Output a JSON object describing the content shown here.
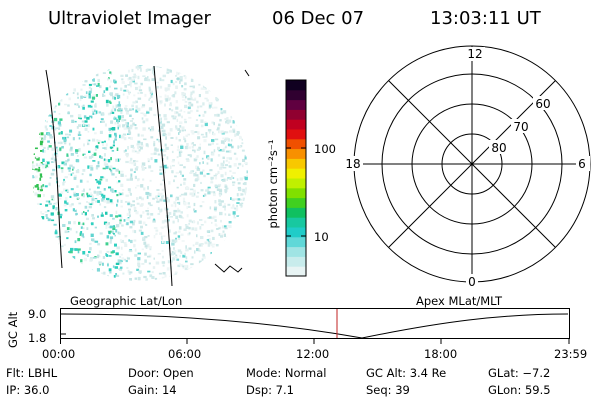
{
  "header": {
    "instrument": "Ultraviolet Imager",
    "date": "06 Dec 07",
    "time": "13:03:11 UT"
  },
  "colorbar": {
    "ticks": [
      "100",
      "10"
    ],
    "label": "photon cm⁻²s⁻¹",
    "colors": [
      "#e8f4f4",
      "#c8ecec",
      "#a0e4e4",
      "#60d8d8",
      "#20ccc8",
      "#18c8a0",
      "#10c060",
      "#40d020",
      "#80e000",
      "#c0f000",
      "#f0f000",
      "#f8c800",
      "#f89000",
      "#f05000",
      "#e01010",
      "#c00020",
      "#900030",
      "#600040",
      "#300030",
      "#100020"
    ]
  },
  "polar_plot": {
    "hour_labels": {
      "top": "12",
      "left": "18",
      "right": "6",
      "bottom": "0"
    },
    "lat_labels": [
      "60",
      "70",
      "80"
    ]
  },
  "timeline": {
    "left_label": "Geographic Lat/Lon",
    "right_label": "Apex MLat/MLT",
    "axis_title": "GC Alt",
    "y_ticks": [
      "9.0",
      "1.8"
    ],
    "x_ticks": [
      "00:00",
      "06:00",
      "12:00",
      "18:00",
      "23:59"
    ]
  },
  "status": {
    "flt": "Flt: LBHL",
    "door": "Door: Open",
    "mode": "Mode: Normal",
    "gc_alt": "GC Alt: 3.4 Re",
    "glat": "GLat:  −7.2",
    "ip": "IP: 36.0",
    "gain": "Gain: 14",
    "dsp": "Dsp:      7.1",
    "seq": "Seq: 39",
    "glon": "GLon:  59.5"
  }
}
